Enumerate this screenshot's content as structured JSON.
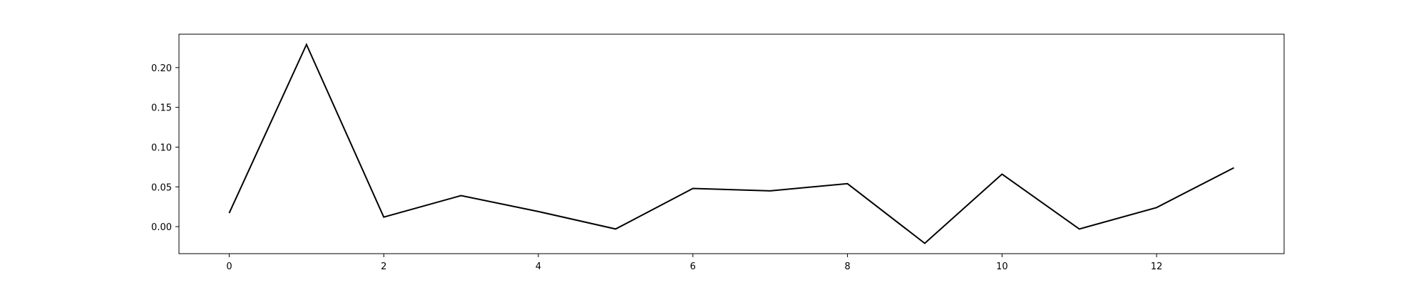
{
  "chart_data": {
    "type": "line",
    "title": "",
    "xlabel": "",
    "ylabel": "",
    "x": [
      0,
      1,
      2,
      3,
      4,
      5,
      6,
      7,
      8,
      9,
      10,
      11,
      12,
      13
    ],
    "series": [
      {
        "values": [
          0.017,
          0.229,
          0.012,
          0.039,
          0.019,
          -0.003,
          0.048,
          0.045,
          0.054,
          -0.021,
          0.066,
          -0.003,
          0.024,
          0.074
        ],
        "color": "#000000"
      }
    ],
    "xlim": [
      -0.65,
      13.65
    ],
    "ylim": [
      -0.034,
      0.242
    ],
    "xticks": [
      0,
      2,
      4,
      6,
      8,
      10,
      12
    ],
    "xtick_labels": [
      "0",
      "2",
      "4",
      "6",
      "8",
      "10",
      "12"
    ],
    "yticks": [
      0.0,
      0.05,
      0.1,
      0.15,
      0.2
    ],
    "ytick_labels": [
      "0.00",
      "0.05",
      "0.10",
      "0.15",
      "0.20"
    ],
    "grid": false,
    "legend": false
  }
}
